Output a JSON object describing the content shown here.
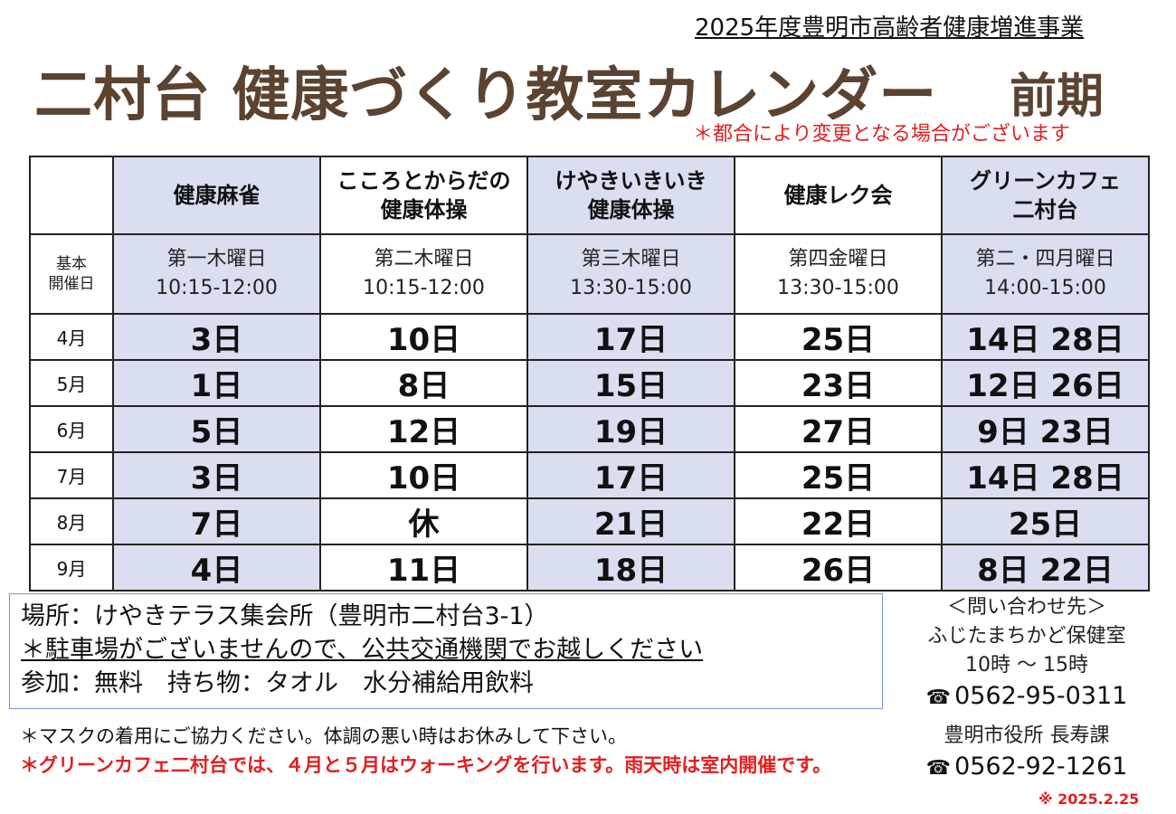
{
  "header": {
    "subtitle": "2025年度豊明市高齢者健康増進事業",
    "title": "二村台 健康づくり教室カレンダー",
    "term": "前期",
    "notice": "＊都合により変更となる場合がございます"
  },
  "table": {
    "columns": [
      {
        "line1": "健康麻雀",
        "line2": "",
        "schedule_day": "第一木曜日",
        "schedule_time": "10:15-12:00",
        "shaded": true
      },
      {
        "line1": "こころとからだの",
        "line2": "健康体操",
        "schedule_day": "第二木曜日",
        "schedule_time": "10:15-12:00",
        "shaded": false
      },
      {
        "line1": "けやきいきいき",
        "line2": "健康体操",
        "schedule_day": "第三木曜日",
        "schedule_time": "13:30-15:00",
        "shaded": true
      },
      {
        "line1": "健康レク会",
        "line2": "",
        "schedule_day": "第四金曜日",
        "schedule_time": "13:30-15:00",
        "shaded": false
      },
      {
        "line1": "グリーンカフェ",
        "line2": "二村台",
        "schedule_day": "第二・四月曜日",
        "schedule_time": "14:00-15:00",
        "shaded": true
      }
    ],
    "schedule_label_line1": "基本",
    "schedule_label_line2": "開催日",
    "rows": [
      {
        "month": "4月",
        "dates": [
          "3日",
          "10日",
          "17日",
          "25日",
          "14日 28日"
        ]
      },
      {
        "month": "5月",
        "dates": [
          "1日",
          "8日",
          "15日",
          "23日",
          "12日 26日"
        ]
      },
      {
        "month": "6月",
        "dates": [
          "5日",
          "12日",
          "19日",
          "27日",
          "9日 23日"
        ]
      },
      {
        "month": "7月",
        "dates": [
          "3日",
          "10日",
          "17日",
          "25日",
          "14日 28日"
        ]
      },
      {
        "month": "8月",
        "dates": [
          "7日",
          "休",
          "21日",
          "22日",
          "25日"
        ]
      },
      {
        "month": "9月",
        "dates": [
          "4日",
          "11日",
          "18日",
          "26日",
          "8日 22日"
        ]
      }
    ]
  },
  "info": {
    "place": "場所：けやきテラス集会所（豊明市二村台3-1）",
    "parking": "＊駐車場がございませんので、公共交通機関でお越しください",
    "fee": "参加：無料　持ち物：タオル　水分補給用飲料"
  },
  "notes": {
    "mask": "＊マスクの着用にご協力ください。体調の悪い時はお休みして下さい。",
    "cafe": "＊グリーンカフェ二村台では、４月と５月はウォーキングを行います。雨天時は室内開催です。"
  },
  "contact": {
    "heading": "＜問い合わせ先＞",
    "org1": "ふじたまちかど保健室",
    "hours": "10時 ～ 15時",
    "phone1": "0562-95-0311",
    "org2": "豊明市役所 長寿課",
    "phone2": "0562-92-1261",
    "tel_icon": "telephone-icon",
    "date_note": "※ 2025.2.25"
  },
  "colors": {
    "title": "#5b4331",
    "accent_red": "#e02020",
    "shade": "#d9dff0",
    "box_border": "#7a96c7"
  }
}
